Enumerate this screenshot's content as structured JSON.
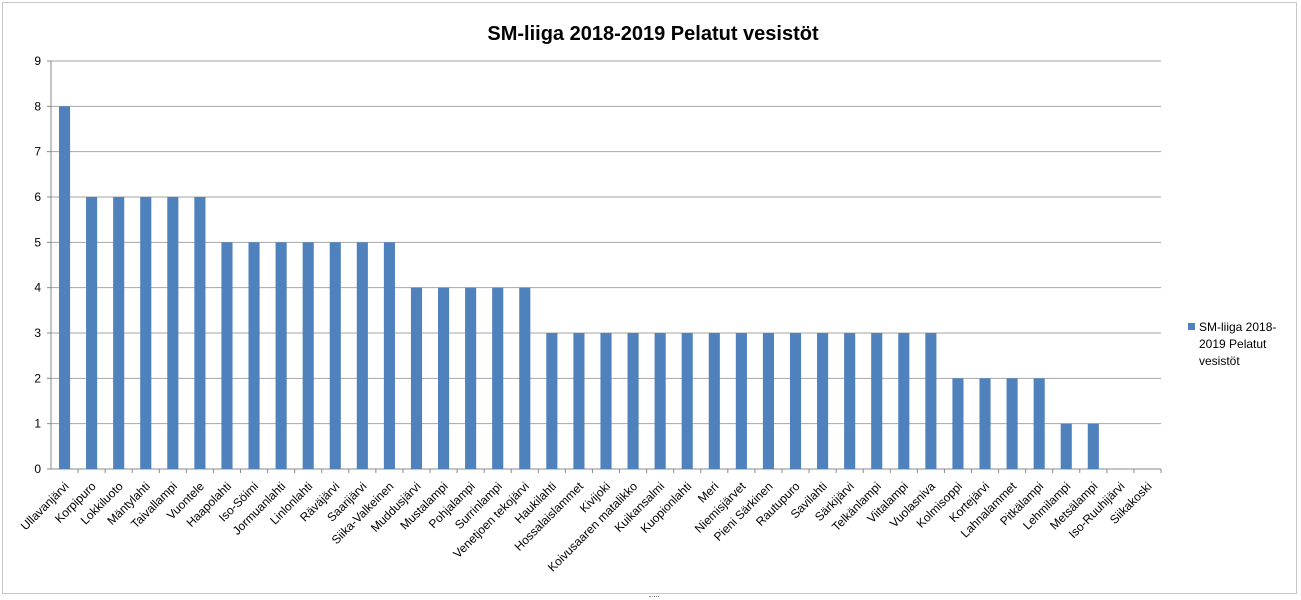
{
  "chart_data": {
    "type": "bar",
    "title": "SM-liiga 2018-2019  Pelatut vesistöt",
    "xlabel": "",
    "ylabel": "",
    "ylim": [
      0,
      9
    ],
    "yticks": [
      0,
      1,
      2,
      3,
      4,
      5,
      6,
      7,
      8,
      9
    ],
    "grid": true,
    "legend_position": "right",
    "bar_color": "#4F81BD",
    "categories": [
      "Ullavanjärvi",
      "Korpipuro",
      "Lokkiluoto",
      "Mäntylahti",
      "Taivallampi",
      "Vuontele",
      "Haapolahti",
      "Iso-Söimi",
      "Jormuanlahti",
      "Linlonlahti",
      "Räväjärvi",
      "Saarijärvi",
      "Siika-Valkeinen",
      "Muddusjärvi",
      "Mustalampi",
      "Pohjalampi",
      "Surrinlampi",
      "Venetjoen tekojärvi",
      "Haukilahti",
      "Hossalaislammet",
      "Kivijoki",
      "Koivusaaren matalikko",
      "Kuikansalmi",
      "Kuopionlahti",
      "Meri",
      "Niemisjärvet",
      "Pieni Särkinen",
      "Rautupuro",
      "Savilahti",
      "Särkijärvi",
      "Telkänlampi",
      "Viitalampi",
      "Vuolasniva",
      "Kolmisoppi",
      "Kortejärvi",
      "Lahnalammet",
      "Pitkälampi",
      "Lehmilampi",
      "Metsälampi",
      "Iso-Ruuhijärvi",
      "Siikakoski"
    ],
    "series": [
      {
        "name": "SM-liiga 2018-2019 Pelatut vesistöt",
        "legend_lines": [
          "SM-liiga 2018-",
          "2019 Pelatut",
          "vesistöt"
        ],
        "values": [
          8,
          6,
          6,
          6,
          6,
          6,
          5,
          5,
          5,
          5,
          5,
          5,
          5,
          4,
          4,
          4,
          4,
          4,
          3,
          3,
          3,
          3,
          3,
          3,
          3,
          3,
          3,
          3,
          3,
          3,
          3,
          3,
          3,
          2,
          2,
          2,
          2,
          1,
          1,
          0,
          0
        ]
      }
    ]
  }
}
